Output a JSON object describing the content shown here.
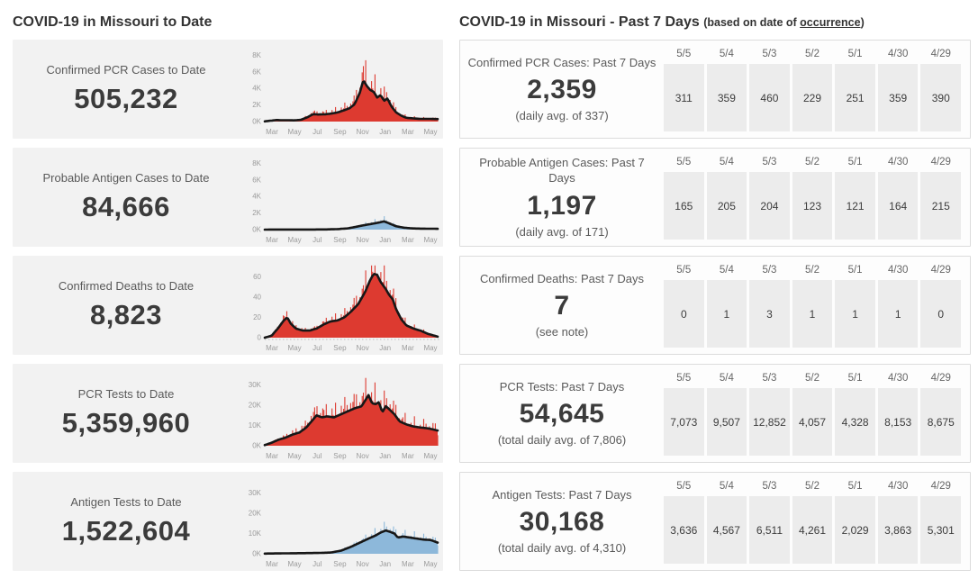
{
  "colors": {
    "case_red": "#dd3a30",
    "antigen_blue": "#8db8da",
    "trend_line": "#171717",
    "left_card_bg": "#f2f2f2",
    "right_card_border": "#dcdcdc",
    "table_cell_bg": "#ececec"
  },
  "left": {
    "title": "COVID-19 in Missouri to Date",
    "cards": [
      {
        "label": "Confirmed PCR Cases to Date",
        "value": "505,232"
      },
      {
        "label": "Probable Antigen Cases to Date",
        "value": "84,666"
      },
      {
        "label": "Confirmed Deaths to Date",
        "value": "8,823"
      },
      {
        "label": "PCR Tests to Date",
        "value": "5,359,960"
      },
      {
        "label": "Antigen Tests to Date",
        "value": "1,522,604"
      }
    ]
  },
  "right": {
    "title": "COVID-19 in Missouri - Past 7 Days",
    "subtitle_prefix": "(based on date of ",
    "subtitle_link": "occurrence",
    "subtitle_suffix": ")",
    "cards": [
      {
        "label": "Confirmed PCR Cases: Past 7 Days",
        "value": "2,359",
        "subtext": "(daily avg. of 337)",
        "dates": [
          "5/5",
          "5/4",
          "5/3",
          "5/2",
          "5/1",
          "4/30",
          "4/29"
        ],
        "values": [
          "311",
          "359",
          "460",
          "229",
          "251",
          "359",
          "390"
        ]
      },
      {
        "label": "Probable Antigen Cases: Past 7 Days",
        "value": "1,197",
        "subtext": "(daily avg. of 171)",
        "dates": [
          "5/5",
          "5/4",
          "5/3",
          "5/2",
          "5/1",
          "4/30",
          "4/29"
        ],
        "values": [
          "165",
          "205",
          "204",
          "123",
          "121",
          "164",
          "215"
        ]
      },
      {
        "label": "Confirmed Deaths: Past 7 Days",
        "value": "7",
        "subtext": "(see note)",
        "dates": [
          "5/5",
          "5/4",
          "5/3",
          "5/2",
          "5/1",
          "4/30",
          "4/29"
        ],
        "values": [
          "0",
          "1",
          "3",
          "1",
          "1",
          "1",
          "0"
        ]
      },
      {
        "label": "PCR Tests: Past 7 Days",
        "value": "54,645",
        "subtext": "(total daily avg. of 7,806)",
        "dates": [
          "5/5",
          "5/4",
          "5/3",
          "5/2",
          "5/1",
          "4/30",
          "4/29"
        ],
        "values": [
          "7,073",
          "9,507",
          "12,852",
          "4,057",
          "4,328",
          "8,153",
          "8,675"
        ]
      },
      {
        "label": "Antigen Tests: Past 7 Days",
        "value": "30,168",
        "subtext": "(total daily avg. of 4,310)",
        "dates": [
          "5/5",
          "5/4",
          "5/3",
          "5/2",
          "5/1",
          "4/30",
          "4/29"
        ],
        "values": [
          "3,636",
          "4,567",
          "6,511",
          "4,261",
          "2,029",
          "3,863",
          "5,301"
        ]
      }
    ]
  },
  "chart_data": [
    {
      "type": "bar",
      "title": "Confirmed PCR Cases to Date (daily with 7-day avg line)",
      "color": "#dd3a30",
      "ymax": 8800,
      "spike": 0.75,
      "yticks": [
        {
          "label": "8K",
          "v": 8000
        },
        {
          "label": "6K",
          "v": 6000
        },
        {
          "label": "4K",
          "v": 4000
        },
        {
          "label": "2K",
          "v": 2000
        },
        {
          "label": "0K",
          "v": 0
        }
      ],
      "xticks": [
        "Mar",
        "May",
        "Jul",
        "Sep",
        "Nov",
        "Jan",
        "Mar",
        "May"
      ],
      "x_range": "Mar 2020 - May 2021",
      "trend": [
        [
          0,
          20
        ],
        [
          0.04,
          120
        ],
        [
          0.07,
          190
        ],
        [
          0.1,
          160
        ],
        [
          0.13,
          170
        ],
        [
          0.17,
          140
        ],
        [
          0.21,
          220
        ],
        [
          0.25,
          550
        ],
        [
          0.28,
          900
        ],
        [
          0.31,
          850
        ],
        [
          0.35,
          880
        ],
        [
          0.38,
          950
        ],
        [
          0.42,
          1100
        ],
        [
          0.45,
          1300
        ],
        [
          0.49,
          1600
        ],
        [
          0.52,
          2100
        ],
        [
          0.55,
          3500
        ],
        [
          0.57,
          5000
        ],
        [
          0.59,
          4300
        ],
        [
          0.61,
          3800
        ],
        [
          0.63,
          3600
        ],
        [
          0.65,
          2900
        ],
        [
          0.67,
          3200
        ],
        [
          0.69,
          2500
        ],
        [
          0.71,
          2800
        ],
        [
          0.73,
          1900
        ],
        [
          0.76,
          1100
        ],
        [
          0.79,
          700
        ],
        [
          0.82,
          450
        ],
        [
          0.86,
          380
        ],
        [
          0.9,
          330
        ],
        [
          0.94,
          330
        ],
        [
          1,
          300
        ]
      ]
    },
    {
      "type": "bar",
      "title": "Probable Antigen Cases to Date (daily with 7-day avg line)",
      "color": "#8db8da",
      "ymax": 8800,
      "spike": 0.7,
      "yticks": [
        {
          "label": "8K",
          "v": 8000
        },
        {
          "label": "6K",
          "v": 6000
        },
        {
          "label": "4K",
          "v": 4000
        },
        {
          "label": "2K",
          "v": 2000
        },
        {
          "label": "0K",
          "v": 0
        }
      ],
      "xticks": [
        "Mar",
        "May",
        "Jul",
        "Sep",
        "Nov",
        "Jan",
        "Mar",
        "May"
      ],
      "x_range": "Mar 2020 - May 2021",
      "trend": [
        [
          0,
          5
        ],
        [
          0.2,
          10
        ],
        [
          0.35,
          20
        ],
        [
          0.42,
          60
        ],
        [
          0.48,
          150
        ],
        [
          0.53,
          350
        ],
        [
          0.58,
          550
        ],
        [
          0.62,
          700
        ],
        [
          0.66,
          850
        ],
        [
          0.69,
          1000
        ],
        [
          0.72,
          750
        ],
        [
          0.76,
          400
        ],
        [
          0.8,
          250
        ],
        [
          0.85,
          150
        ],
        [
          0.9,
          120
        ],
        [
          1,
          100
        ]
      ]
    },
    {
      "type": "bar",
      "title": "Confirmed Deaths to Date (daily with 7-day avg line)",
      "color": "#dd3a30",
      "ymax": 72,
      "spike": 0.5,
      "baseline_dotted": true,
      "yticks": [
        {
          "label": "60",
          "v": 60
        },
        {
          "label": "40",
          "v": 40
        },
        {
          "label": "20",
          "v": 20
        },
        {
          "label": "0",
          "v": 0
        }
      ],
      "xticks": [
        "Mar",
        "May",
        "Jul",
        "Sep",
        "Nov",
        "Jan",
        "Mar",
        "May"
      ],
      "x_range": "Mar 2020 - May 2021",
      "trend": [
        [
          0,
          0
        ],
        [
          0.04,
          2
        ],
        [
          0.08,
          10
        ],
        [
          0.11,
          17
        ],
        [
          0.13,
          20
        ],
        [
          0.15,
          14
        ],
        [
          0.18,
          9
        ],
        [
          0.22,
          7
        ],
        [
          0.26,
          7
        ],
        [
          0.3,
          9
        ],
        [
          0.34,
          13
        ],
        [
          0.38,
          16
        ],
        [
          0.42,
          17
        ],
        [
          0.46,
          20
        ],
        [
          0.5,
          26
        ],
        [
          0.54,
          33
        ],
        [
          0.58,
          45
        ],
        [
          0.61,
          57
        ],
        [
          0.63,
          63
        ],
        [
          0.65,
          62
        ],
        [
          0.67,
          55
        ],
        [
          0.7,
          48
        ],
        [
          0.72,
          42
        ],
        [
          0.74,
          38
        ],
        [
          0.76,
          28
        ],
        [
          0.79,
          18
        ],
        [
          0.82,
          12
        ],
        [
          0.86,
          9
        ],
        [
          0.9,
          7
        ],
        [
          0.94,
          4
        ],
        [
          1,
          1
        ]
      ]
    },
    {
      "type": "bar",
      "title": "PCR Tests to Date (daily with 7-day avg line)",
      "color": "#dd3a30",
      "ymax": 36000,
      "spike": 0.55,
      "yticks": [
        {
          "label": "30K",
          "v": 30000
        },
        {
          "label": "20K",
          "v": 20000
        },
        {
          "label": "10K",
          "v": 10000
        },
        {
          "label": "0K",
          "v": 0
        }
      ],
      "xticks": [
        "Mar",
        "May",
        "Jul",
        "Sep",
        "Nov",
        "Jan",
        "Mar",
        "May"
      ],
      "x_range": "Mar 2020 - May 2021",
      "trend": [
        [
          0,
          300
        ],
        [
          0.04,
          1500
        ],
        [
          0.08,
          3000
        ],
        [
          0.12,
          4000
        ],
        [
          0.16,
          5500
        ],
        [
          0.2,
          6500
        ],
        [
          0.24,
          9000
        ],
        [
          0.28,
          13000
        ],
        [
          0.3,
          15000
        ],
        [
          0.33,
          14000
        ],
        [
          0.36,
          14500
        ],
        [
          0.4,
          14000
        ],
        [
          0.44,
          15500
        ],
        [
          0.48,
          17000
        ],
        [
          0.52,
          18500
        ],
        [
          0.56,
          19500
        ],
        [
          0.6,
          25000
        ],
        [
          0.62,
          21000
        ],
        [
          0.64,
          20500
        ],
        [
          0.66,
          21500
        ],
        [
          0.68,
          16500
        ],
        [
          0.7,
          19500
        ],
        [
          0.72,
          18000
        ],
        [
          0.75,
          15500
        ],
        [
          0.78,
          12000
        ],
        [
          0.82,
          10500
        ],
        [
          0.86,
          9500
        ],
        [
          0.9,
          9000
        ],
        [
          0.95,
          8500
        ],
        [
          1,
          7500
        ]
      ]
    },
    {
      "type": "bar",
      "title": "Antigen Tests to Date (daily with 7-day avg line)",
      "color": "#8db8da",
      "ymax": 36000,
      "spike": 0.45,
      "yticks": [
        {
          "label": "30K",
          "v": 30000
        },
        {
          "label": "20K",
          "v": 20000
        },
        {
          "label": "10K",
          "v": 10000
        },
        {
          "label": "0K",
          "v": 0
        }
      ],
      "xticks": [
        "Mar",
        "May",
        "Jul",
        "Sep",
        "Nov",
        "Jan",
        "Mar",
        "May"
      ],
      "x_range": "Mar 2020 - May 2021",
      "trend": [
        [
          0,
          100
        ],
        [
          0.1,
          200
        ],
        [
          0.2,
          300
        ],
        [
          0.3,
          400
        ],
        [
          0.38,
          600
        ],
        [
          0.44,
          1500
        ],
        [
          0.5,
          3500
        ],
        [
          0.55,
          5500
        ],
        [
          0.6,
          7500
        ],
        [
          0.64,
          9000
        ],
        [
          0.67,
          10500
        ],
        [
          0.7,
          11500
        ],
        [
          0.72,
          11000
        ],
        [
          0.75,
          10000
        ],
        [
          0.77,
          8000
        ],
        [
          0.8,
          8500
        ],
        [
          0.84,
          8000
        ],
        [
          0.88,
          7500
        ],
        [
          0.92,
          7000
        ],
        [
          0.96,
          6800
        ],
        [
          1,
          5500
        ]
      ]
    }
  ]
}
